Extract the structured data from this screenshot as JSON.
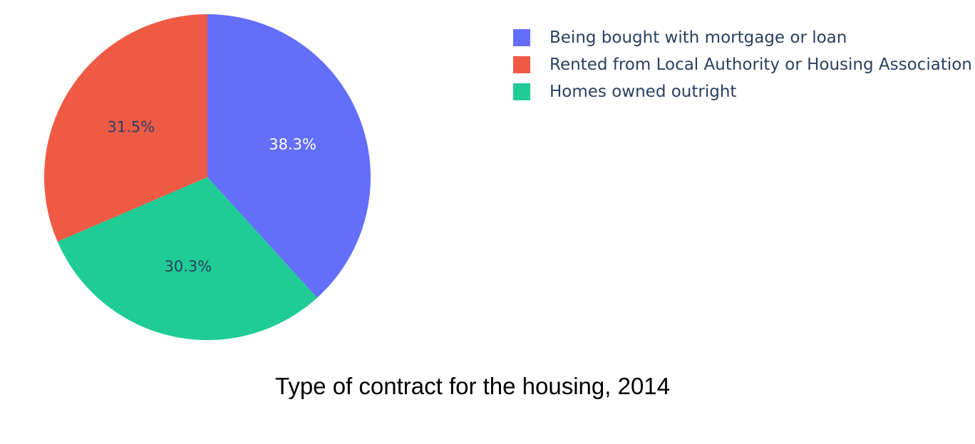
{
  "chart_data": {
    "type": "pie",
    "caption": "Type of contract for the housing, 2014",
    "slices": [
      {
        "label": "Being bought with mortgage or loan",
        "value": 38.3,
        "value_label": "38.3%",
        "color": "#636efa",
        "text_color": "#ffffff"
      },
      {
        "label": "Homes owned outright",
        "value": 30.3,
        "value_label": "30.3%",
        "color": "#20cc96",
        "text_color": "#2a3f5f"
      },
      {
        "label": "Rented from Local Authority or Housing Association",
        "value": 31.5,
        "value_label": "31.5%",
        "color": "#ef5a45",
        "text_color": "#2a3f5f"
      }
    ],
    "legend": {
      "position": "top-right",
      "items": [
        {
          "label": "Being bought with mortgage or loan",
          "color": "#636efa"
        },
        {
          "label": "Rented from Local Authority or Housing Association",
          "color": "#ef5a45"
        },
        {
          "label": "Homes owned outright",
          "color": "#20cc96"
        }
      ]
    },
    "direction": "clockwise",
    "start_angle": "12 o'clock"
  }
}
